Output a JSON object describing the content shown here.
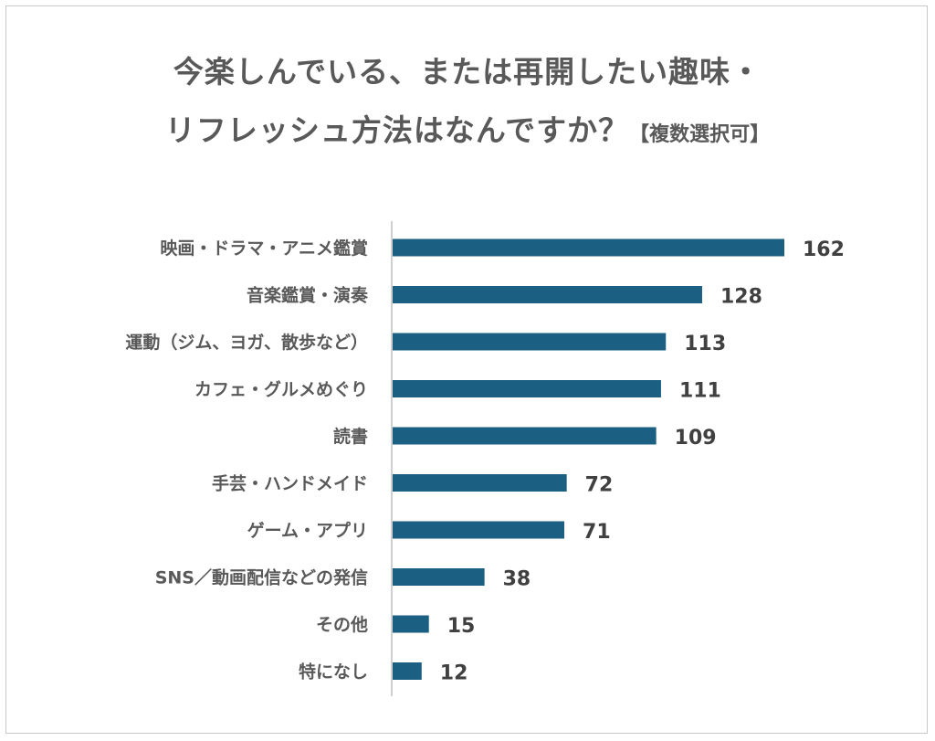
{
  "chart_data": {
    "type": "bar",
    "orientation": "horizontal",
    "title_line1": "今楽しんでいる、または再開したい趣味・",
    "title_line2": "リフレッシュ方法はなんですか？",
    "title_note": "【複数選択可】",
    "categories": [
      "映画・ドラマ・アニメ鑑賞",
      "音楽鑑賞・演奏",
      "運動（ジム、ヨガ、散歩など）",
      "カフェ・グルメめぐり",
      "読書",
      "手芸・ハンドメイド",
      "ゲーム・アプリ",
      "SNS／動画配信などの発信",
      "その他",
      "特になし"
    ],
    "values": [
      162,
      128,
      113,
      111,
      109,
      72,
      71,
      38,
      15,
      12
    ],
    "xlim": [
      0,
      170
    ],
    "bar_color": "#1b5f82",
    "axis_color": "#bfbfbf"
  }
}
